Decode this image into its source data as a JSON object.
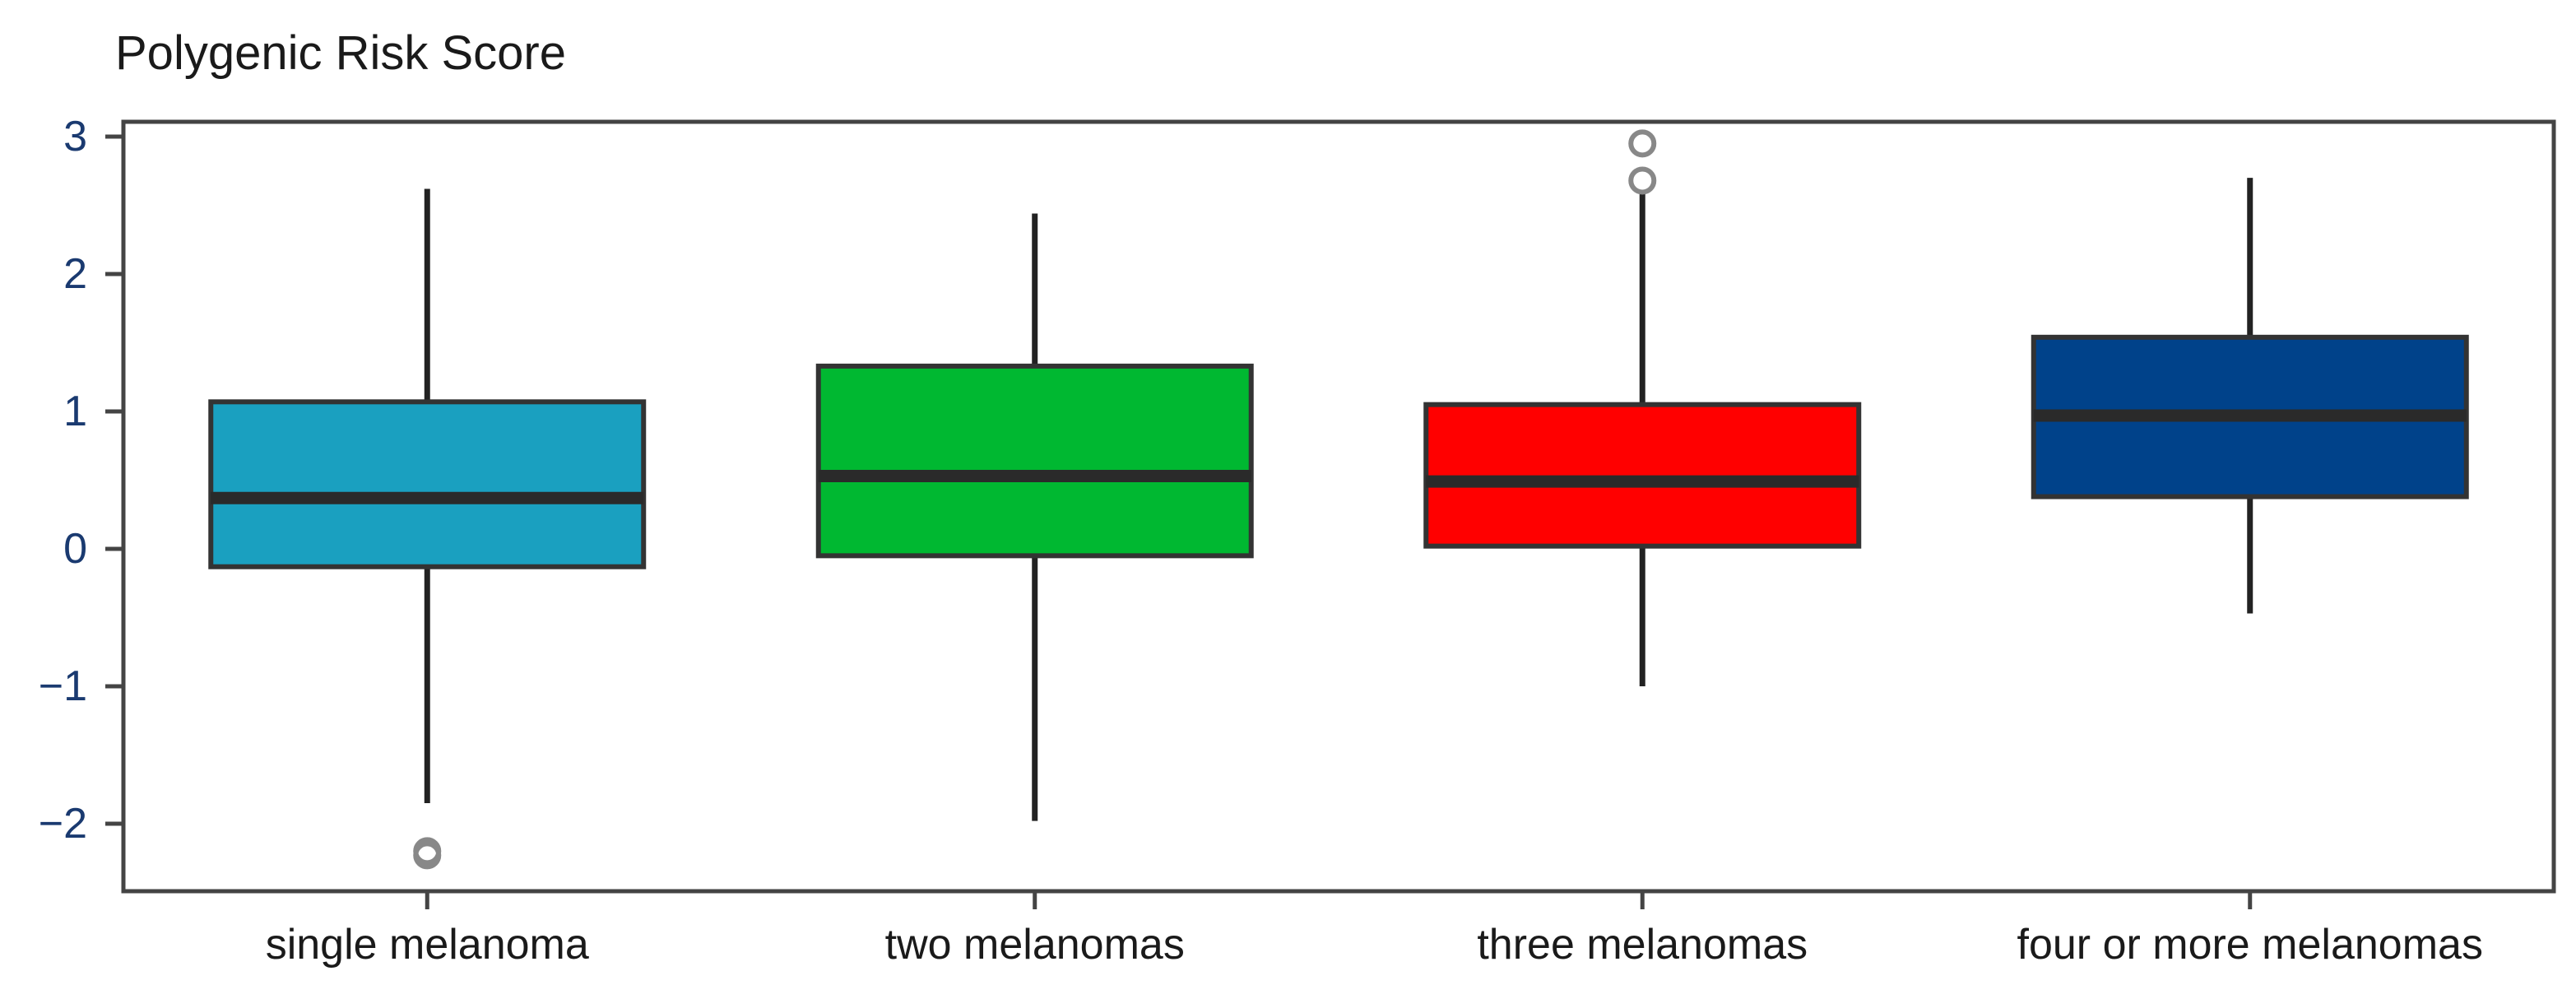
{
  "chart_data": {
    "type": "box",
    "title": "Polygenic Risk Score",
    "xlabel": "",
    "ylabel": "",
    "ylim": [
      -2.5,
      3.15
    ],
    "yticks": [
      3,
      2,
      1,
      0,
      -1,
      -2
    ],
    "ytick_labels": [
      "3",
      "2",
      "1",
      "0",
      "−1",
      "−2"
    ],
    "grid": false,
    "categories": [
      "single melanoma",
      "two melanomas",
      "three melanomas",
      "four or more melanomas"
    ],
    "boxes": [
      {
        "category": "single melanoma",
        "whisker_low": -1.85,
        "q1": -0.13,
        "median": 0.37,
        "q3": 1.07,
        "whisker_high": 2.62,
        "outliers": [
          -2.2,
          -2.23
        ],
        "color": "#1aa0c0"
      },
      {
        "category": "two melanomas",
        "whisker_low": -1.98,
        "q1": -0.05,
        "median": 0.53,
        "q3": 1.33,
        "whisker_high": 2.44,
        "outliers": [],
        "color": "#00b831"
      },
      {
        "category": "three melanomas",
        "whisker_low": -1.0,
        "q1": 0.02,
        "median": 0.49,
        "q3": 1.05,
        "whisker_high": 2.6,
        "outliers": [
          2.68,
          2.95
        ],
        "color": "#ff0000"
      },
      {
        "category": "four or more melanomas",
        "whisker_low": -0.47,
        "q1": 0.38,
        "median": 0.97,
        "q3": 1.54,
        "whisker_high": 2.7,
        "outliers": [],
        "color": "#00428a"
      }
    ]
  }
}
